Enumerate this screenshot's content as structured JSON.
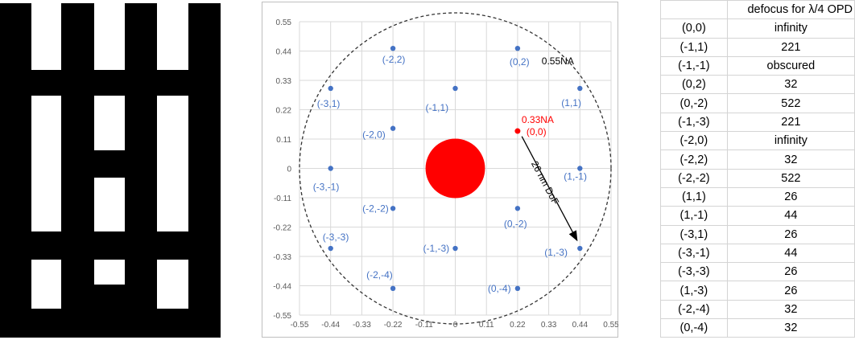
{
  "colors": {
    "point": "#4472c4",
    "highlight": "#ff0000",
    "tick_text": "#595959",
    "grid": "#d9d9d9",
    "pattern_black": "#000000",
    "pattern_white": "#ffffff"
  },
  "chart_data": {
    "type": "scatter",
    "title": "",
    "xlabel": "",
    "ylabel": "",
    "xlim": [
      -0.55,
      0.55
    ],
    "ylim": [
      -0.55,
      0.55
    ],
    "grid": true,
    "xticks": [
      "-0.55",
      "-0.44",
      "-0.33",
      "-0.22",
      "-0.11",
      "0",
      "0.11",
      "0.22",
      "0.33",
      "0.44",
      "0.55"
    ],
    "yticks": [
      "0.55",
      "0.44",
      "0.33",
      "0.22",
      "0.11",
      "0",
      "-0.11",
      "-0.22",
      "-0.33",
      "-0.44",
      "-0.55"
    ],
    "points": [
      {
        "label": "(-2,2)",
        "x": -0.22,
        "y": 0.45
      },
      {
        "label": "(0,2)",
        "x": 0.22,
        "y": 0.45
      },
      {
        "label": "(-3,1)",
        "x": -0.44,
        "y": 0.3
      },
      {
        "label": "(-1,1)",
        "x": 0.0,
        "y": 0.3
      },
      {
        "label": "(1,1)",
        "x": 0.44,
        "y": 0.3
      },
      {
        "label": "(-2,0)",
        "x": -0.22,
        "y": 0.15
      },
      {
        "label": "(-3,-1)",
        "x": -0.44,
        "y": 0.0
      },
      {
        "label": "(1,-1)",
        "x": 0.44,
        "y": 0.0
      },
      {
        "label": "(-2,-2)",
        "x": -0.22,
        "y": -0.15
      },
      {
        "label": "(0,-2)",
        "x": 0.22,
        "y": -0.15
      },
      {
        "label": "(-3,-3)",
        "x": -0.44,
        "y": -0.3
      },
      {
        "label": "(-1,-3)",
        "x": 0.0,
        "y": -0.3
      },
      {
        "label": "(1,-3)",
        "x": 0.44,
        "y": -0.3
      },
      {
        "label": "(-2,-4)",
        "x": -0.22,
        "y": -0.45
      },
      {
        "label": "(0,-4)",
        "x": 0.22,
        "y": -0.45
      }
    ],
    "highlight_point": {
      "label": "(0,0)",
      "annotation": "0.33NA",
      "x": 0.22,
      "y": 0.14
    },
    "center_disk": {
      "x": 0,
      "y": 0,
      "radius": 0.105
    },
    "outer_circle": {
      "label": "0.55NA",
      "radius": 0.55
    },
    "arrow": {
      "label": "26 nm DoF",
      "from": [
        0.235,
        0.12
      ],
      "to": [
        0.43,
        -0.27
      ]
    }
  },
  "table": {
    "header": [
      "",
      "defocus for λ/4 OPD"
    ],
    "rows": [
      [
        "(0,0)",
        "infinity"
      ],
      [
        "(-1,1)",
        "221"
      ],
      [
        "(-1,-1)",
        "obscured"
      ],
      [
        "(0,2)",
        "32"
      ],
      [
        "(0,-2)",
        "522"
      ],
      [
        "(-1,-3)",
        "221"
      ],
      [
        "(-2,0)",
        "infinity"
      ],
      [
        "(-2,2)",
        "32"
      ],
      [
        "(-2,-2)",
        "522"
      ],
      [
        "(1,1)",
        "26"
      ],
      [
        "(1,-1)",
        "44"
      ],
      [
        "(-3,1)",
        "26"
      ],
      [
        "(-3,-1)",
        "44"
      ],
      [
        "(-3,-3)",
        "26"
      ],
      [
        "(1,-3)",
        "26"
      ],
      [
        "(-2,-4)",
        "32"
      ],
      [
        "(0,-4)",
        "32"
      ]
    ]
  }
}
